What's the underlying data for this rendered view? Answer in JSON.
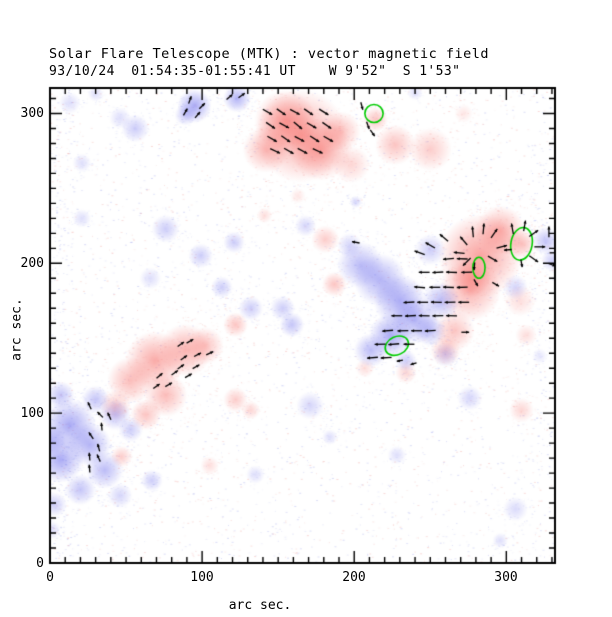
{
  "header": {
    "title": "Solar Flare Telescope (MTK) : vector magnetic field",
    "subtitle": "93/10/24  01:54:35-01:55:41 UT    W 9'52\"  S 1'53\""
  },
  "axes": {
    "x": {
      "label": "arc sec.",
      "tick_labels": [
        "0",
        "100",
        "200",
        "300"
      ],
      "tick_values": [
        0,
        100,
        200,
        300
      ],
      "minor_step": 10,
      "range": [
        0,
        332
      ]
    },
    "y": {
      "label": "arc sec.",
      "tick_labels": [
        "0",
        "100",
        "200",
        "300"
      ],
      "tick_values": [
        0,
        100,
        200,
        300
      ],
      "minor_step": 10,
      "range": [
        0,
        317
      ]
    }
  },
  "colors": {
    "positive_polarity": "#f65852",
    "negative_polarity": "#5858eb",
    "contour_green": "#00cc00",
    "vector_black": "#000000",
    "noise_positive": "#f2aaa6",
    "noise_negative": "#a8aeee",
    "frame": "#000000",
    "background": "#ffffff"
  },
  "chart_data": {
    "type": "heatmap",
    "title": "Solar Flare Telescope (MTK) : vector magnetic field",
    "xlabel": "arc sec.",
    "ylabel": "arc sec.",
    "x_range": [
      0,
      332
    ],
    "y_range": [
      0,
      317
    ],
    "grid": false,
    "legend": "none",
    "units": "arc sec",
    "description": "Longitudinal magnetogram: red = positive polarity, blue = negative polarity; black segments = transverse field vectors; green ellipses = flare kernels / contours.",
    "positive_blobs": [
      [
        165,
        285,
        30,
        0.5
      ],
      [
        155,
        295,
        20,
        0.5
      ],
      [
        178,
        276,
        20,
        0.45
      ],
      [
        142,
        276,
        15,
        0.4
      ],
      [
        191,
        288,
        13,
        0.35
      ],
      [
        198,
        266,
        12,
        0.25
      ],
      [
        214,
        296,
        8,
        0.35
      ],
      [
        227,
        279,
        13,
        0.35
      ],
      [
        250,
        276,
        14,
        0.3
      ],
      [
        283,
        205,
        27,
        0.55
      ],
      [
        276,
        182,
        20,
        0.45
      ],
      [
        296,
        222,
        16,
        0.45
      ],
      [
        266,
        155,
        13,
        0.35
      ],
      [
        309,
        175,
        10,
        0.2
      ],
      [
        260,
        142,
        10,
        0.3
      ],
      [
        310,
        213,
        9,
        0.4
      ],
      [
        277,
        190,
        12,
        0.3
      ],
      [
        69,
        135,
        19,
        0.5
      ],
      [
        89,
        142,
        17,
        0.45
      ],
      [
        53,
        122,
        15,
        0.4
      ],
      [
        76,
        112,
        14,
        0.4
      ],
      [
        102,
        145,
        12,
        0.35
      ],
      [
        43,
        105,
        10,
        0.3
      ],
      [
        63,
        99,
        10,
        0.35
      ],
      [
        122,
        109,
        8,
        0.3
      ],
      [
        47,
        71,
        7,
        0.3
      ],
      [
        105,
        65,
        6,
        0.2
      ],
      [
        132,
        102,
        6,
        0.25
      ],
      [
        141,
        232,
        5,
        0.2
      ],
      [
        163,
        245,
        5,
        0.15
      ],
      [
        310,
        102,
        8,
        0.25
      ],
      [
        313,
        152,
        7,
        0.2
      ],
      [
        272,
        300,
        6,
        0.15
      ],
      [
        181,
        216,
        9,
        0.3
      ],
      [
        187,
        186,
        8,
        0.35
      ],
      [
        122,
        159,
        8,
        0.35
      ],
      [
        234,
        127,
        7,
        0.25
      ],
      [
        207,
        130,
        6,
        0.2
      ]
    ],
    "negative_blobs": [
      [
        95,
        305,
        11,
        0.5
      ],
      [
        123,
        310,
        9,
        0.45
      ],
      [
        89,
        299,
        7,
        0.3
      ],
      [
        13,
        307,
        7,
        0.2
      ],
      [
        56,
        290,
        9,
        0.3
      ],
      [
        46,
        297,
        7,
        0.2
      ],
      [
        21,
        267,
        6,
        0.2
      ],
      [
        21,
        230,
        6,
        0.2
      ],
      [
        168,
        225,
        7,
        0.25
      ],
      [
        76,
        223,
        9,
        0.3
      ],
      [
        99,
        205,
        8,
        0.3
      ],
      [
        66,
        190,
        7,
        0.2
      ],
      [
        132,
        170,
        8,
        0.3
      ],
      [
        153,
        170,
        8,
        0.3
      ],
      [
        113,
        184,
        7,
        0.3
      ],
      [
        121,
        214,
        7,
        0.3
      ],
      [
        159,
        159,
        8,
        0.35
      ],
      [
        204,
        199,
        15,
        0.4
      ],
      [
        217,
        189,
        17,
        0.45
      ],
      [
        230,
        175,
        17,
        0.5
      ],
      [
        240,
        162,
        15,
        0.45
      ],
      [
        224,
        152,
        14,
        0.5
      ],
      [
        211,
        142,
        11,
        0.4
      ],
      [
        250,
        209,
        10,
        0.3
      ],
      [
        197,
        212,
        8,
        0.25
      ],
      [
        257,
        175,
        12,
        0.4
      ],
      [
        250,
        155,
        10,
        0.35
      ],
      [
        260,
        139,
        8,
        0.25
      ],
      [
        234,
        135,
        7,
        0.3
      ],
      [
        326,
        215,
        9,
        0.35
      ],
      [
        330,
        202,
        7,
        0.3
      ],
      [
        306,
        184,
        8,
        0.25
      ],
      [
        13,
        92,
        17,
        0.5
      ],
      [
        7,
        69,
        15,
        0.5
      ],
      [
        26,
        79,
        14,
        0.45
      ],
      [
        36,
        62,
        12,
        0.4
      ],
      [
        20,
        49,
        10,
        0.35
      ],
      [
        43,
        99,
        10,
        0.35
      ],
      [
        30,
        109,
        9,
        0.35
      ],
      [
        53,
        89,
        8,
        0.3
      ],
      [
        7,
        112,
        9,
        0.35
      ],
      [
        0,
        82,
        10,
        0.4
      ],
      [
        46,
        45,
        8,
        0.25
      ],
      [
        67,
        55,
        7,
        0.3
      ],
      [
        3,
        39,
        8,
        0.3
      ],
      [
        1,
        22,
        6,
        0.2
      ],
      [
        171,
        105,
        9,
        0.25
      ],
      [
        135,
        59,
        6,
        0.2
      ],
      [
        184,
        84,
        5,
        0.2
      ],
      [
        228,
        72,
        6,
        0.2
      ],
      [
        276,
        110,
        8,
        0.25
      ],
      [
        306,
        36,
        8,
        0.22
      ],
      [
        296,
        15,
        5,
        0.2
      ],
      [
        240,
        314,
        5,
        0.2
      ],
      [
        201,
        241,
        4,
        0.25
      ],
      [
        30,
        313,
        5,
        0.2
      ],
      [
        322,
        138,
        5,
        0.15
      ]
    ],
    "contours_green": [
      [
        213,
        300,
        6,
        6,
        0
      ],
      [
        310,
        213,
        7,
        11,
        10
      ],
      [
        282,
        197,
        4,
        7,
        0
      ],
      [
        228,
        145,
        8,
        6,
        -25
      ]
    ],
    "vector_default_len": 7,
    "vectors": [
      [
        143,
        301,
        -30
      ],
      [
        152,
        301,
        -35
      ],
      [
        161,
        301,
        -28
      ],
      [
        170,
        301,
        -35
      ],
      [
        180,
        301,
        -32
      ],
      [
        145,
        292,
        -35
      ],
      [
        154,
        292,
        -28
      ],
      [
        163,
        292,
        -40
      ],
      [
        172,
        292,
        -30
      ],
      [
        182,
        292,
        -35
      ],
      [
        146,
        283,
        -30
      ],
      [
        155,
        283,
        -35
      ],
      [
        164,
        283,
        -28
      ],
      [
        174,
        283,
        -33
      ],
      [
        183,
        283,
        -30
      ],
      [
        148,
        275,
        -25
      ],
      [
        157,
        275,
        -30
      ],
      [
        166,
        275,
        -28
      ],
      [
        176,
        275,
        -25
      ],
      [
        92,
        309,
        70,
        5
      ],
      [
        100,
        305,
        45,
        5
      ],
      [
        89,
        301,
        60,
        5
      ],
      [
        97,
        299,
        50,
        5
      ],
      [
        118,
        311,
        40,
        5
      ],
      [
        126,
        312,
        35,
        5
      ],
      [
        205,
        305,
        -75,
        5
      ],
      [
        209,
        292,
        -70,
        5
      ],
      [
        212,
        287,
        -55,
        5
      ],
      [
        262,
        203,
        185
      ],
      [
        271,
        203,
        178
      ],
      [
        246,
        194,
        180
      ],
      [
        255,
        194,
        183
      ],
      [
        264,
        194,
        178
      ],
      [
        274,
        194,
        181
      ],
      [
        243,
        184,
        175
      ],
      [
        253,
        184,
        180
      ],
      [
        262,
        184,
        178
      ],
      [
        271,
        184,
        182
      ],
      [
        236,
        174,
        183
      ],
      [
        245,
        174,
        180
      ],
      [
        254,
        174,
        178
      ],
      [
        263,
        174,
        182
      ],
      [
        272,
        174,
        180
      ],
      [
        228,
        165,
        180
      ],
      [
        237,
        165,
        183
      ],
      [
        246,
        165,
        178
      ],
      [
        255,
        165,
        181
      ],
      [
        264,
        165,
        179
      ],
      [
        222,
        155,
        185
      ],
      [
        232,
        155,
        182
      ],
      [
        241,
        155,
        180
      ],
      [
        250,
        155,
        184
      ],
      [
        217,
        146,
        182
      ],
      [
        226,
        146,
        185
      ],
      [
        236,
        146,
        180
      ],
      [
        212,
        137,
        185
      ],
      [
        221,
        137,
        183
      ],
      [
        250,
        212,
        150
      ],
      [
        259,
        217,
        140
      ],
      [
        243,
        207,
        160
      ],
      [
        201,
        214,
        170,
        5
      ],
      [
        230,
        135,
        190,
        4
      ],
      [
        239,
        133,
        195,
        4
      ],
      [
        278,
        221,
        95
      ],
      [
        285,
        223,
        85
      ],
      [
        292,
        220,
        55
      ],
      [
        272,
        215,
        130
      ],
      [
        269,
        207,
        175
      ],
      [
        274,
        201,
        225
      ],
      [
        279,
        198,
        265,
        5
      ],
      [
        291,
        203,
        -30
      ],
      [
        297,
        211,
        15
      ],
      [
        304,
        223,
        100
      ],
      [
        312,
        225,
        80
      ],
      [
        318,
        220,
        35
      ],
      [
        322,
        211,
        0
      ],
      [
        318,
        203,
        -35
      ],
      [
        310,
        200,
        -80,
        5
      ],
      [
        301,
        209,
        185,
        5
      ],
      [
        328,
        221,
        90
      ],
      [
        331,
        207,
        0,
        5
      ],
      [
        330,
        199,
        -20,
        5
      ],
      [
        280,
        187,
        -60,
        5
      ],
      [
        293,
        186,
        -30,
        5
      ],
      [
        273,
        154,
        0,
        5
      ],
      [
        26,
        105,
        115,
        5
      ],
      [
        33,
        99,
        135,
        5
      ],
      [
        39,
        98,
        115,
        5
      ],
      [
        34,
        91,
        95,
        5
      ],
      [
        27,
        85,
        125,
        5
      ],
      [
        32,
        77,
        105,
        5
      ],
      [
        26,
        71,
        95,
        5
      ],
      [
        32,
        70,
        115,
        5
      ],
      [
        26,
        63,
        95,
        5
      ],
      [
        86,
        146,
        35,
        5
      ],
      [
        92,
        148,
        30,
        5
      ],
      [
        88,
        137,
        35,
        5
      ],
      [
        97,
        139,
        28,
        5
      ],
      [
        105,
        140,
        25,
        5
      ],
      [
        86,
        131,
        35,
        5
      ],
      [
        96,
        131,
        30,
        5
      ],
      [
        72,
        125,
        40,
        5
      ],
      [
        82,
        127,
        35,
        5
      ],
      [
        91,
        125,
        30,
        5
      ],
      [
        70,
        118,
        35,
        5
      ],
      [
        78,
        119,
        30,
        5
      ]
    ],
    "noise": {
      "seed": 77,
      "base_count": 3200,
      "edge_count": 420,
      "blob_factor": 5
    }
  }
}
